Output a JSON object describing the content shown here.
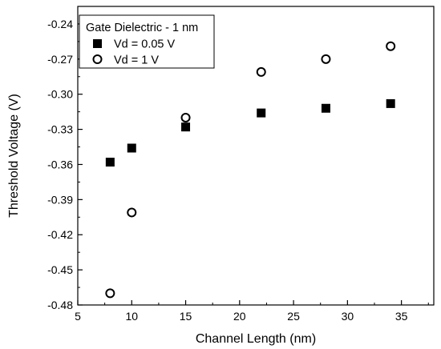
{
  "chart_data": {
    "type": "scatter",
    "title": "",
    "xlabel": "Channel Length (nm)",
    "ylabel": "Threshold Voltage (V)",
    "xlim": [
      5,
      38
    ],
    "ylim": [
      -0.48,
      -0.225
    ],
    "x_ticks": [
      5,
      10,
      15,
      20,
      25,
      30,
      35
    ],
    "y_ticks": [
      -0.24,
      -0.27,
      -0.3,
      -0.33,
      -0.36,
      -0.39,
      -0.42,
      -0.45,
      -0.48
    ],
    "grid": false,
    "legend": {
      "title": "Gate Dielectric - 1 nm",
      "placement": "top-left"
    },
    "series": [
      {
        "name": "Vd = 0.05 V",
        "marker": "filled-square",
        "color": "#000000",
        "x": [
          8,
          10,
          15,
          22,
          28,
          34
        ],
        "y": [
          -0.358,
          -0.346,
          -0.328,
          -0.316,
          -0.312,
          -0.308
        ]
      },
      {
        "name": "Vd = 1 V",
        "marker": "open-circle",
        "color": "#000000",
        "x": [
          8,
          10,
          15,
          22,
          28,
          34
        ],
        "y": [
          -0.47,
          -0.401,
          -0.32,
          -0.281,
          -0.27,
          -0.259
        ]
      }
    ]
  }
}
